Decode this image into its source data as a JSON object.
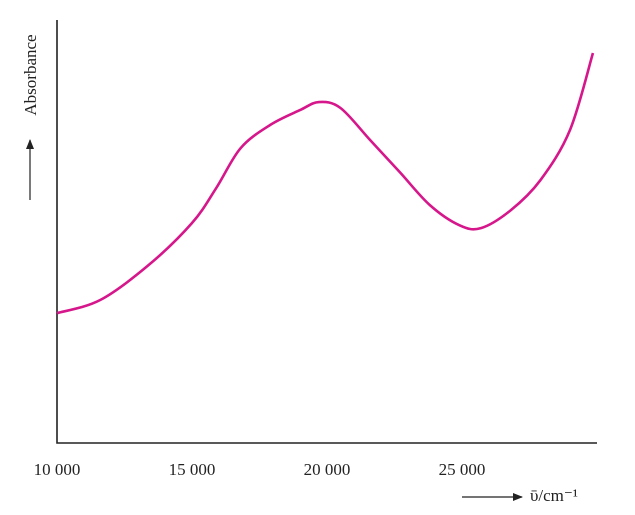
{
  "chart_data": {
    "type": "line",
    "y_label": "Absorbance",
    "x_label": "ῡ/cm⁻¹",
    "x": [
      10000,
      11600,
      13400,
      15000,
      15900,
      16800,
      17900,
      19000,
      19700,
      20500,
      21600,
      22700,
      23800,
      24900,
      25700,
      26800,
      27900,
      29000,
      29850
    ],
    "series": [
      {
        "name": "Absorbance",
        "color": "#d6168b",
        "values": [
          0.307,
          0.338,
          0.421,
          0.52,
          0.603,
          0.697,
          0.752,
          0.787,
          0.806,
          0.792,
          0.716,
          0.64,
          0.563,
          0.515,
          0.508,
          0.55,
          0.621,
          0.74,
          0.922
        ]
      }
    ],
    "xlim": [
      10000,
      30000
    ],
    "ylim": [
      0,
      1
    ],
    "xticks": [
      {
        "value": 10000,
        "label": "10 000"
      },
      {
        "value": 15000,
        "label": "15 000"
      },
      {
        "value": 20000,
        "label": "20 000"
      },
      {
        "value": 25000,
        "label": "25 000"
      }
    ]
  }
}
